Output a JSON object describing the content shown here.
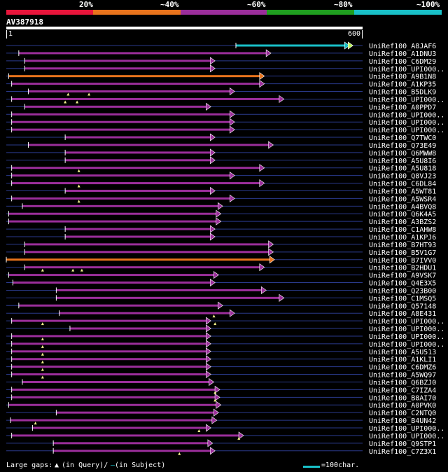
{
  "legend": {
    "segments": [
      {
        "label": "20%",
        "color": "#e8153b"
      },
      {
        "label": "~40%",
        "color": "#e8731c"
      },
      {
        "label": "~60%",
        "color": "#9b2e9b"
      },
      {
        "label": "~80%",
        "color": "#1f9e1f"
      },
      {
        "label": "~100%",
        "color": "#19c0c8"
      }
    ]
  },
  "query": {
    "id": "AV387918",
    "length": 600,
    "scale_start": "1",
    "scale_end": "600"
  },
  "colors": {
    "row_line": "#2a3a8c",
    "gap_marker": "#f2f28c",
    "identity_20": "#e8153b",
    "identity_40": "#e8731c",
    "identity_60": "#9b2e9b",
    "identity_80": "#1f9e1f",
    "identity_100": "#19c0c8"
  },
  "hits": [
    {
      "name": "UniRef100_A8JAF6",
      "start": 387,
      "end": 578,
      "identity": 100,
      "gaps": []
    },
    {
      "name": "UniRef100_A1DNU3",
      "start": 22,
      "end": 446,
      "identity": 60,
      "gaps": []
    },
    {
      "name": "UniRef100_C6DM29",
      "start": 32,
      "end": 352,
      "identity": 60,
      "gaps": []
    },
    {
      "name": "UniRef100_UPI000..",
      "start": 32,
      "end": 352,
      "identity": 60,
      "gaps": []
    },
    {
      "name": "UniRef100_A9B1N8",
      "start": 5,
      "end": 435,
      "identity": 40,
      "gaps": []
    },
    {
      "name": "UniRef100_A1KP35",
      "start": 10,
      "end": 435,
      "identity": 60,
      "gaps": []
    },
    {
      "name": "UniRef100_B5DLK9",
      "start": 38,
      "end": 385,
      "identity": 60,
      "gaps": [
        105,
        140
      ]
    },
    {
      "name": "UniRef100_UPI000..",
      "start": 10,
      "end": 468,
      "identity": 60,
      "gaps": [
        100,
        120
      ]
    },
    {
      "name": "UniRef100_A0PPD7",
      "start": 32,
      "end": 345,
      "identity": 60,
      "gaps": []
    },
    {
      "name": "UniRef100_UPI000..",
      "start": 10,
      "end": 385,
      "identity": 60,
      "gaps": []
    },
    {
      "name": "UniRef100_UPI000..",
      "start": 10,
      "end": 385,
      "identity": 60,
      "gaps": []
    },
    {
      "name": "UniRef100_UPI000..",
      "start": 10,
      "end": 385,
      "identity": 60,
      "gaps": []
    },
    {
      "name": "UniRef100_Q7TWC0",
      "start": 100,
      "end": 352,
      "identity": 60,
      "gaps": []
    },
    {
      "name": "UniRef100_Q73E49",
      "start": 38,
      "end": 450,
      "identity": 60,
      "gaps": []
    },
    {
      "name": "UniRef100_Q6MWW8",
      "start": 100,
      "end": 352,
      "identity": 60,
      "gaps": []
    },
    {
      "name": "UniRef100_A5U8I6",
      "start": 100,
      "end": 352,
      "identity": 60,
      "gaps": []
    },
    {
      "name": "UniRef100_A5U818",
      "start": 10,
      "end": 435,
      "identity": 60,
      "gaps": [
        123
      ]
    },
    {
      "name": "UniRef100_Q8VJ23",
      "start": 10,
      "end": 385,
      "identity": 60,
      "gaps": []
    },
    {
      "name": "UniRef100_C6DL84",
      "start": 10,
      "end": 435,
      "identity": 60,
      "gaps": [
        123
      ]
    },
    {
      "name": "UniRef100_A5WT81",
      "start": 100,
      "end": 352,
      "identity": 60,
      "gaps": []
    },
    {
      "name": "UniRef100_A5WSR4",
      "start": 10,
      "end": 385,
      "identity": 60,
      "gaps": [
        123
      ]
    },
    {
      "name": "UniRef100_A4BVQ8",
      "start": 28,
      "end": 365,
      "identity": 60,
      "gaps": []
    },
    {
      "name": "UniRef100_Q6K4A5",
      "start": 5,
      "end": 362,
      "identity": 60,
      "gaps": []
    },
    {
      "name": "UniRef100_A3BZS2",
      "start": 5,
      "end": 362,
      "identity": 60,
      "gaps": []
    },
    {
      "name": "UniRef100_C1AHW8",
      "start": 100,
      "end": 352,
      "identity": 60,
      "gaps": []
    },
    {
      "name": "UniRef100_A1KPJ6",
      "start": 100,
      "end": 352,
      "identity": 60,
      "gaps": []
    },
    {
      "name": "UniRef100_B7HT93",
      "start": 32,
      "end": 450,
      "identity": 60,
      "gaps": []
    },
    {
      "name": "UniRef100_B5V1G7",
      "start": 32,
      "end": 450,
      "identity": 60,
      "gaps": []
    },
    {
      "name": "UniRef100_B7IVV0",
      "start": 1,
      "end": 452,
      "identity": 40,
      "gaps": []
    },
    {
      "name": "UniRef100_B2HDU1",
      "start": 32,
      "end": 435,
      "identity": 60,
      "gaps": [
        62,
        113,
        128
      ]
    },
    {
      "name": "UniRef100_A9VSK7",
      "start": 5,
      "end": 358,
      "identity": 60,
      "gaps": []
    },
    {
      "name": "UniRef100_Q4E3X5",
      "start": 12,
      "end": 352,
      "identity": 60,
      "gaps": []
    },
    {
      "name": "UniRef100_Q23B00",
      "start": 85,
      "end": 438,
      "identity": 60,
      "gaps": []
    },
    {
      "name": "UniRef100_C1MSQ5",
      "start": 85,
      "end": 468,
      "identity": 60,
      "gaps": []
    },
    {
      "name": "UniRef100_Q57148",
      "start": 22,
      "end": 365,
      "identity": 60,
      "gaps": []
    },
    {
      "name": "UniRef100_A8E431",
      "start": 90,
      "end": 385,
      "identity": 60,
      "gaps": [
        350
      ]
    },
    {
      "name": "UniRef100_UPI000..",
      "start": 10,
      "end": 345,
      "identity": 60,
      "gaps": [
        62,
        352
      ]
    },
    {
      "name": "UniRef100_UPI000..",
      "start": 108,
      "end": 345,
      "identity": 60,
      "gaps": []
    },
    {
      "name": "UniRef100_UPI000..",
      "start": 10,
      "end": 345,
      "identity": 60,
      "gaps": [
        62
      ]
    },
    {
      "name": "UniRef100_UPI000..",
      "start": 10,
      "end": 345,
      "identity": 60,
      "gaps": [
        62
      ]
    },
    {
      "name": "UniRef100_A5U513",
      "start": 10,
      "end": 345,
      "identity": 60,
      "gaps": [
        62
      ]
    },
    {
      "name": "UniRef100_A1KLI1",
      "start": 10,
      "end": 345,
      "identity": 60,
      "gaps": [
        62
      ]
    },
    {
      "name": "UniRef100_C6DMZ6",
      "start": 10,
      "end": 345,
      "identity": 60,
      "gaps": [
        62
      ]
    },
    {
      "name": "UniRef100_A5WQ97",
      "start": 10,
      "end": 345,
      "identity": 60,
      "gaps": [
        62
      ]
    },
    {
      "name": "UniRef100_Q6BZJ0",
      "start": 28,
      "end": 350,
      "identity": 60,
      "gaps": []
    },
    {
      "name": "UniRef100_C7IZA4",
      "start": 10,
      "end": 360,
      "identity": 60,
      "gaps": [
        352
      ]
    },
    {
      "name": "UniRef100_B8AI70",
      "start": 10,
      "end": 360,
      "identity": 60,
      "gaps": [
        352
      ]
    },
    {
      "name": "UniRef100_A0PVK0",
      "start": 5,
      "end": 362,
      "identity": 60,
      "gaps": []
    },
    {
      "name": "UniRef100_C2NTQ0",
      "start": 85,
      "end": 358,
      "identity": 60,
      "gaps": []
    },
    {
      "name": "UniRef100_B4UN42",
      "start": 8,
      "end": 355,
      "identity": 60,
      "gaps": [
        50
      ]
    },
    {
      "name": "UniRef100_UPI000..",
      "start": 45,
      "end": 345,
      "identity": 60,
      "gaps": [
        325
      ]
    },
    {
      "name": "UniRef100_UPI000..",
      "start": 10,
      "end": 400,
      "identity": 60,
      "gaps": [
        392
      ]
    },
    {
      "name": "UniRef100_Q9STP1",
      "start": 80,
      "end": 348,
      "identity": 60,
      "gaps": []
    },
    {
      "name": "UniRef100_C7Z3X1",
      "start": 80,
      "end": 352,
      "identity": 60,
      "gaps": [
        292
      ]
    }
  ],
  "footer": {
    "gaps_label": "Large gaps:",
    "gaps_query": "(in Query)/",
    "gaps_subject": "(in Subject)",
    "scale_label": "=100char."
  }
}
